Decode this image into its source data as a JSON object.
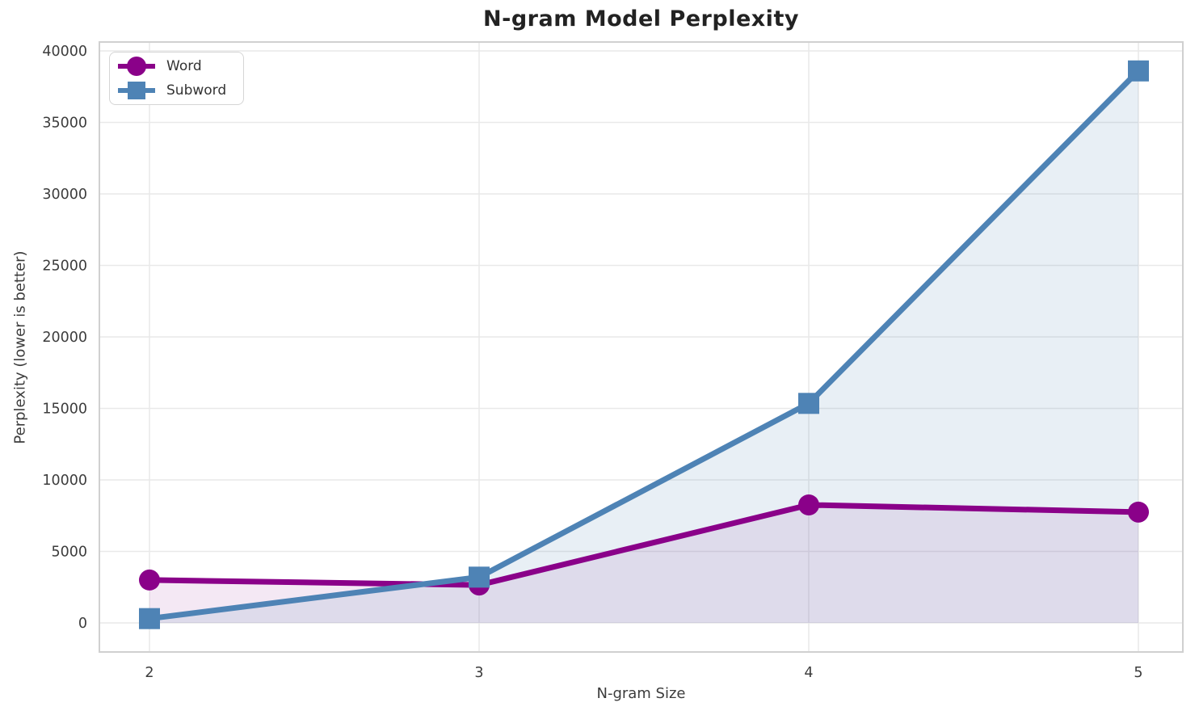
{
  "chart_data": {
    "type": "line",
    "title": "N-gram Model Perplexity",
    "xlabel": "N-gram Size",
    "ylabel": "Perplexity (lower is better)",
    "x": [
      2,
      3,
      4,
      5
    ],
    "xtick_labels": [
      "2",
      "3",
      "4",
      "5"
    ],
    "yticks": [
      0,
      5000,
      10000,
      15000,
      20000,
      25000,
      30000,
      35000,
      40000
    ],
    "ylim": [
      0,
      40000
    ],
    "grid": true,
    "legend_position": "upper left",
    "background_color": "#ffffff",
    "grid_color": "#e9e9e9",
    "spine_color": "#d0d0d0",
    "tick_text_color": "#3c3c3c",
    "series": [
      {
        "name": "Word",
        "color": "#8A0189",
        "marker": "circle",
        "line_width": 7,
        "values": [
          3000,
          2650,
          8250,
          7750
        ],
        "fill_to_zero": true,
        "fill_opacity": 0.09
      },
      {
        "name": "Subword",
        "color": "#4E83B5",
        "marker": "square",
        "line_width": 7,
        "values": [
          300,
          3200,
          15350,
          38600
        ],
        "fill_to_zero": true,
        "fill_opacity": 0.13
      }
    ]
  }
}
